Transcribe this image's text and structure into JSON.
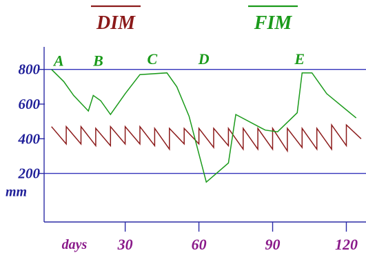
{
  "chart_data": {
    "type": "line",
    "legend": [
      {
        "name": "DIM",
        "color": "#8b1a1a",
        "overline": true
      },
      {
        "name": "FIM",
        "color": "#1a9a1a",
        "overline": true
      }
    ],
    "xlabel": "days",
    "ylabel": "mm",
    "xlim": [
      -3,
      128
    ],
    "ylim": [
      -80,
      930
    ],
    "x_ticks": [
      {
        "value": 30,
        "label": "30"
      },
      {
        "value": 60,
        "label": "60"
      },
      {
        "value": 90,
        "label": "90"
      },
      {
        "value": 120,
        "label": "120"
      }
    ],
    "y_ticks": [
      {
        "value": 200,
        "label": "200"
      },
      {
        "value": 400,
        "label": "400"
      },
      {
        "value": 600,
        "label": "600"
      },
      {
        "value": 800,
        "label": "800"
      }
    ],
    "reference_lines": [
      {
        "y": 800,
        "color": "#3333bb"
      },
      {
        "y": 200,
        "color": "#3333bb"
      }
    ],
    "annotations": [
      {
        "text": "A",
        "x": 3,
        "y": 820,
        "color": "#1a9a1a"
      },
      {
        "text": "B",
        "x": 19,
        "y": 820,
        "color": "#1a9a1a"
      },
      {
        "text": "C",
        "x": 41,
        "y": 830,
        "color": "#1a9a1a"
      },
      {
        "text": "D",
        "x": 62,
        "y": 830,
        "color": "#1a9a1a"
      },
      {
        "text": "E",
        "x": 101,
        "y": 830,
        "color": "#1a9a1a"
      }
    ],
    "series": [
      {
        "name": "DIM",
        "color": "#8b1a1a",
        "x": [
          0,
          6,
          6,
          12,
          12,
          18,
          18,
          24,
          24,
          30,
          30,
          36,
          36,
          42,
          42,
          48,
          48,
          54,
          54,
          60,
          60,
          66,
          66,
          72,
          72,
          78,
          78,
          84,
          84,
          90,
          90,
          96,
          96,
          102,
          102,
          108,
          108,
          114,
          114,
          120,
          120,
          126
        ],
        "y": [
          470,
          370,
          470,
          370,
          470,
          360,
          460,
          360,
          470,
          370,
          470,
          370,
          470,
          360,
          460,
          340,
          460,
          370,
          460,
          370,
          460,
          350,
          460,
          360,
          460,
          340,
          460,
          340,
          460,
          340,
          460,
          330,
          460,
          350,
          460,
          340,
          460,
          340,
          480,
          360,
          480,
          400
        ]
      },
      {
        "name": "FIM",
        "color": "#1a9a1a",
        "x": [
          0,
          5,
          9,
          15,
          17,
          20,
          24,
          30,
          36,
          47,
          51,
          56,
          63,
          72,
          75,
          87,
          92,
          100,
          102,
          106,
          112,
          124
        ],
        "y": [
          800,
          730,
          650,
          560,
          650,
          620,
          540,
          660,
          770,
          780,
          700,
          530,
          150,
          260,
          540,
          450,
          440,
          550,
          780,
          780,
          660,
          520
        ]
      }
    ]
  }
}
